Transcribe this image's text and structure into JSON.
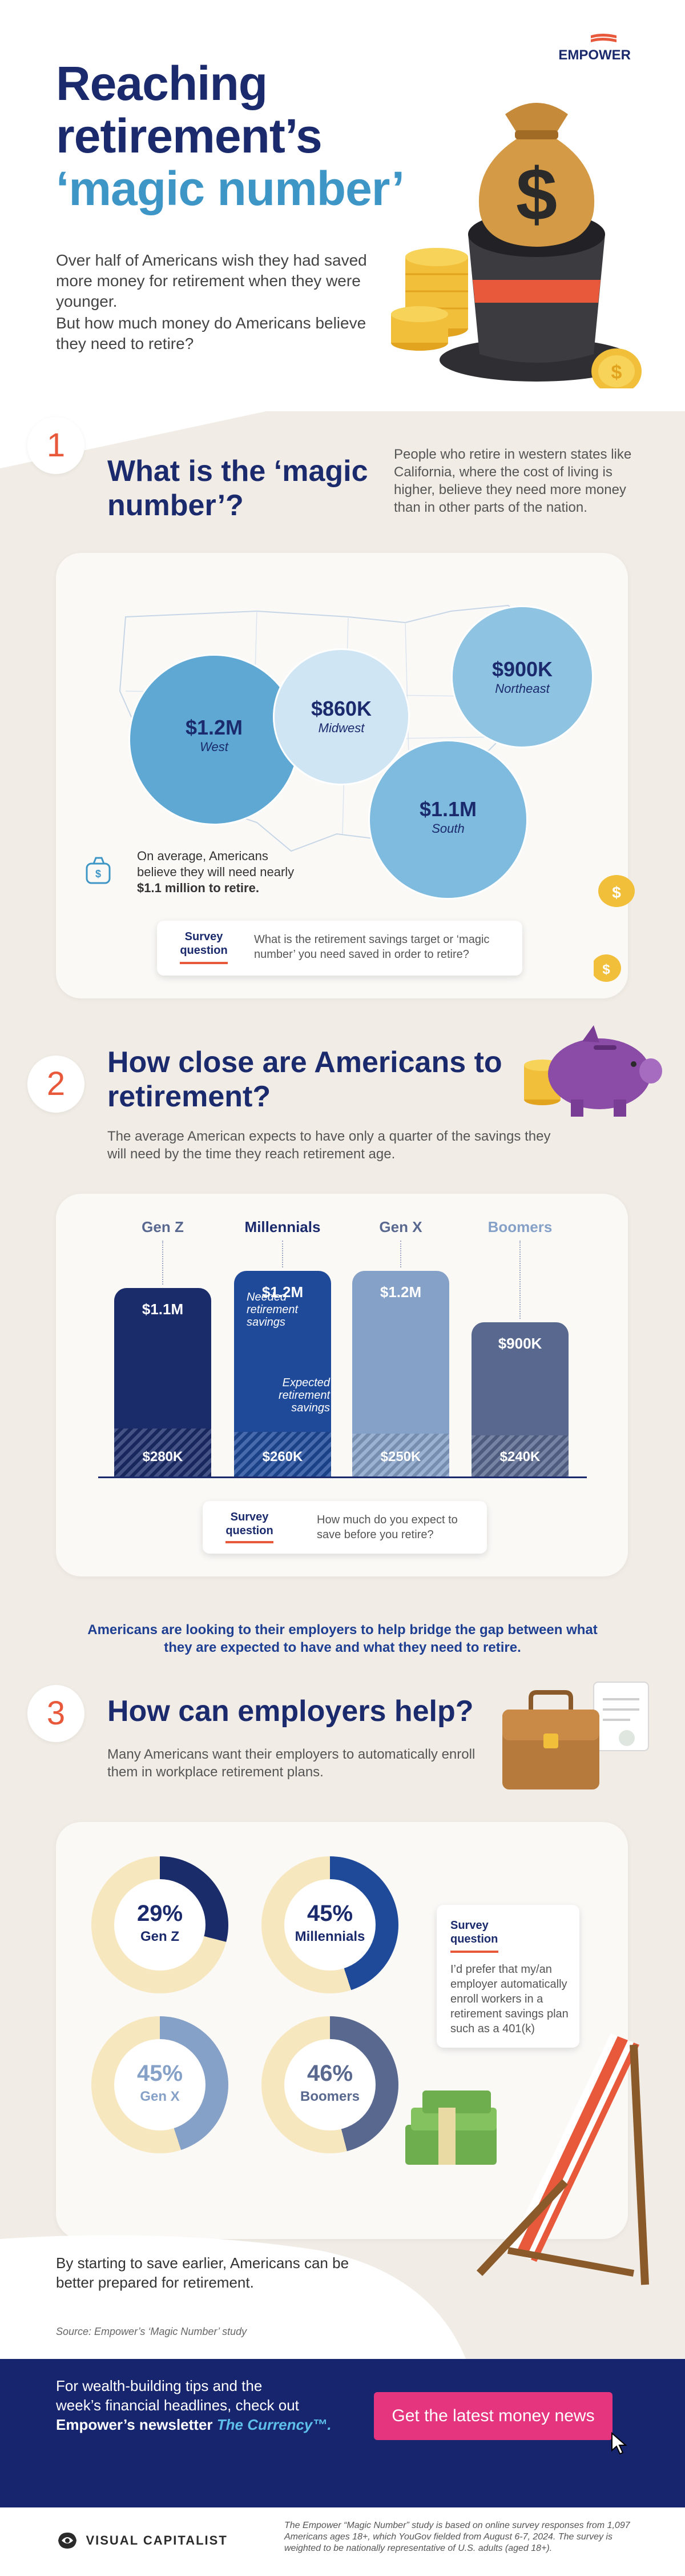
{
  "brand": {
    "name": "EMPOWER",
    "accent": "#e8593b",
    "navy": "#1a2a6c",
    "teal": "#3e96c7"
  },
  "hero": {
    "title_line1": "Reaching",
    "title_line2": "retirement’s",
    "title_line3": "‘magic number’",
    "text1": "Over half of Americans wish they had saved more money for retirement when they were younger.",
    "text2": "But how much money do Americans believe they need to retire?"
  },
  "section1": {
    "number": "1",
    "title": "What is the ‘magic number’?",
    "text": "People who retire in western states like California, where the cost of living is higher, believe they need more money than in other parts of the nation.",
    "note_prefix": "On average, Americans believe they will need nearly",
    "note_value": "$1.1 million to retire.",
    "survey_label": "Survey question",
    "survey_question": "What is the retirement savings target or ‘magic number’ you need saved in order to retire?"
  },
  "section2": {
    "number": "2",
    "title": "How close are Americans to retirement?",
    "text": "The average American expects to have only a quarter of the savings they will need by the time they reach retirement age.",
    "note_needed": "Needed retirement savings",
    "note_expected": "Expected retirement savings",
    "survey_label": "Survey question",
    "survey_question": "How much do you expect to save before you retire?"
  },
  "bridge_text": "Americans are looking to their employers to help bridge the gap between what they are expected to have and what they need to retire.",
  "section3": {
    "number": "3",
    "title": "How can employers help?",
    "text": "Many Americans want their employers to automatically enroll them in workplace retirement plans.",
    "survey_label": "Survey question",
    "survey_question": "I’d prefer that my/an employer automatically enroll workers in a retirement savings plan such as a 401(k)"
  },
  "closing": {
    "text": "By starting to save earlier, Americans can be better prepared for retirement.",
    "source": "Source: Empower’s ‘Magic Number’ study"
  },
  "footer": {
    "text_line1": "For wealth-building tips and the",
    "text_line2": "week’s financial headlines, check out",
    "text_line3_prefix": "Empower’s newsletter",
    "newsletter": "The Currency™.",
    "cta": "Get the latest money news",
    "logo": "VISUAL CAPITALIST",
    "methodology": "The Empower “Magic Number” study is based on online survey responses from 1,097 Americans ages 18+, which YouGov fielded from August 6-7, 2024. The survey is weighted to be nationally representative of U.S. adults (aged 18+)."
  },
  "chart_data": [
    {
      "type": "bubble-map",
      "categories": [
        "West",
        "Midwest",
        "Northeast",
        "South"
      ],
      "values": [
        1.2,
        0.86,
        0.9,
        1.1
      ],
      "value_labels": [
        "$1.2M",
        "$860K",
        "$900K",
        "$1.1M"
      ],
      "unit": "USD millions"
    },
    {
      "type": "bar",
      "categories": [
        "Gen Z",
        "Millennials",
        "Gen X",
        "Boomers"
      ],
      "series": [
        {
          "name": "Needed retirement savings",
          "values": [
            1.1,
            1.2,
            1.2,
            0.9
          ],
          "labels": [
            "$1.1M",
            "$1.2M",
            "$1.2M",
            "$900K"
          ]
        },
        {
          "name": "Expected retirement savings",
          "values": [
            0.28,
            0.26,
            0.25,
            0.24
          ],
          "labels": [
            "$280K",
            "$260K",
            "$250K",
            "$240K"
          ]
        }
      ],
      "colors": [
        "#1b2c6b",
        "#1f4a9a",
        "#86a1c8",
        "#59688f"
      ],
      "ylim": [
        0,
        1.2
      ]
    },
    {
      "type": "pie",
      "categories": [
        "Gen Z",
        "Millennials",
        "Gen X",
        "Boomers"
      ],
      "values": [
        29,
        45,
        45,
        46
      ],
      "labels": [
        "29%",
        "45%",
        "45%",
        "46%"
      ],
      "colors": [
        "#1b2c6b",
        "#1f4a9a",
        "#86a1c8",
        "#59688f"
      ]
    }
  ]
}
